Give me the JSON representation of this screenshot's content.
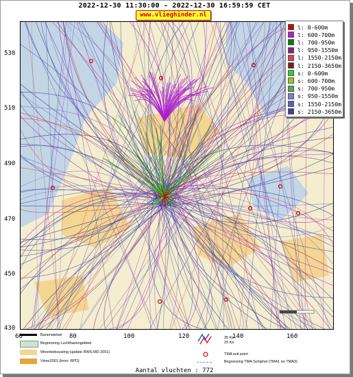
{
  "header": {
    "title": "2022-12-30 11:30:00 - 2022-12-30 16:59:59 CET",
    "site": "www.vlieghinder.nl"
  },
  "map": {
    "y_ticks": [
      "530",
      "510",
      "490",
      "470",
      "450",
      "430"
    ],
    "x_ticks": [
      "60",
      "80",
      "100",
      "120",
      "140",
      "160"
    ],
    "colors": {
      "background": "#f4edcf",
      "water": "#c3d6e6",
      "urban": "#f4d692",
      "tracks_low": "#3a3c9e"
    }
  },
  "legend": {
    "items": [
      {
        "label": "l: 0-600m",
        "color": "#cc0000"
      },
      {
        "label": "l: 600-700m",
        "color": "#aa22cc"
      },
      {
        "label": "l: 700-950m",
        "color": "#117711"
      },
      {
        "label": "l: 950-1550m",
        "color": "#8a1f7a"
      },
      {
        "label": "l: 1550-2150m",
        "color": "#d0445a"
      },
      {
        "label": "l: 2150-3650m",
        "color": "#7a1f1f"
      },
      {
        "label": "s: 0-600m",
        "color": "#33cc33"
      },
      {
        "label": "s: 600-700m",
        "color": "#99cc22"
      },
      {
        "label": "s: 700-950m",
        "color": "#55aa55"
      },
      {
        "label": "s: 950-1550m",
        "color": "#7f7fcc"
      },
      {
        "label": "s: 1550-2150m",
        "color": "#5f5fb8"
      },
      {
        "label": "s: 2150-3650m",
        "color": "#3f3f9a"
      }
    ]
  },
  "bottom_legend": {
    "banenstelsel": "Banenstelsel",
    "luchthaven": "Begrenzing Luchthavengebied",
    "woonbebouwing": "Woonbebouwing (update RWS-MD 2001)",
    "vinex": "Vinex2001 (bron: RPD)",
    "ke35": "35 Ke",
    "ke20": "20 Ke",
    "tma_exit": "TMA exit point",
    "tma_boundary": "Begrenzing TMA Schiphol  (TMA1 en TMA3)"
  },
  "footer": {
    "count": "Aantal vluchten : 772"
  }
}
